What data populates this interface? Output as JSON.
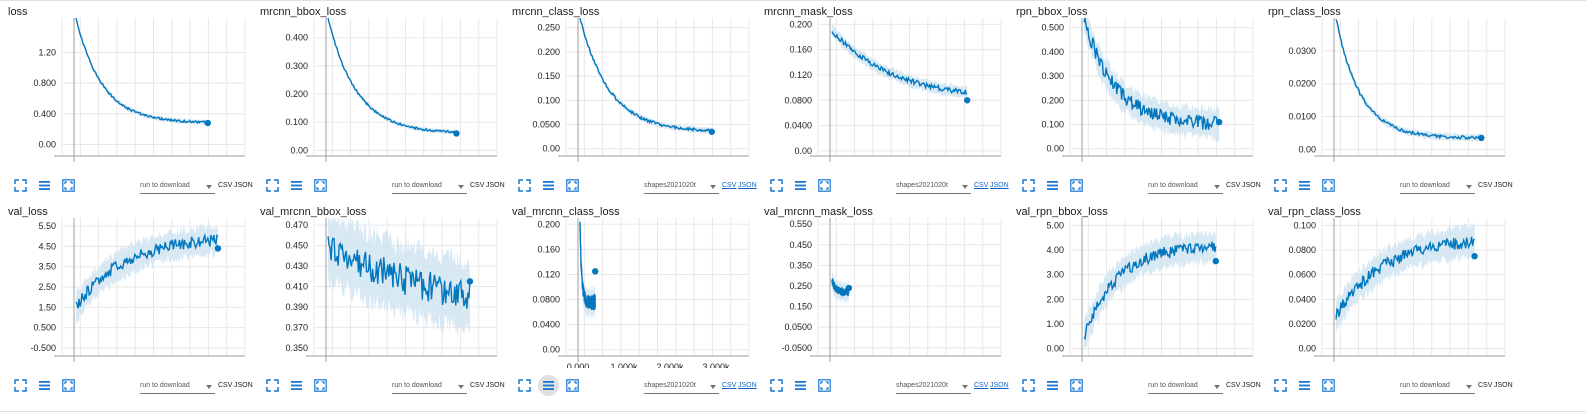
{
  "colors": {
    "line": "#0277bd",
    "band": "#cfe3f1",
    "grid": "#e8e8e8",
    "axis": "#9e9e9e"
  },
  "icons": {
    "expand": "expand-icon",
    "data": "data-list-icon",
    "fit": "fit-domain-icon"
  },
  "run_placeholder": "run to download",
  "csv": "CSV",
  "json": "JSON",
  "cards": [
    {
      "title": "loss",
      "run": "run to download",
      "link": false,
      "ytick_labels": [
        "1.20",
        "0.800",
        "0.400",
        "0.00"
      ],
      "y_domain": [
        -0.15,
        1.65
      ],
      "ticks": [
        1.2,
        0.8,
        0.4,
        0.0
      ],
      "start": 1.65,
      "end": 0.28,
      "decay": 5,
      "noise": 0.015,
      "band": 0.02,
      "xlen": 0.78,
      "last": 0.28,
      "xaxis": []
    },
    {
      "title": "mrcnn_bbox_loss",
      "run": "run to download",
      "link": false,
      "ytick_labels": [
        "0.400",
        "0.300",
        "0.200",
        "0.100",
        "0.00"
      ],
      "y_domain": [
        -0.02,
        0.47
      ],
      "ticks": [
        0.4,
        0.3,
        0.2,
        0.1,
        0.0
      ],
      "start": 0.47,
      "end": 0.06,
      "decay": 4.5,
      "noise": 0.004,
      "band": 0.005,
      "xlen": 0.76,
      "last": 0.06,
      "xaxis": []
    },
    {
      "title": "mrcnn_class_loss",
      "run": "shapes2021020t",
      "link": true,
      "ytick_labels": [
        "0.250",
        "0.200",
        "0.150",
        "0.100",
        "0.0500",
        "0.00"
      ],
      "y_domain": [
        -0.015,
        0.27
      ],
      "ticks": [
        0.25,
        0.2,
        0.15,
        0.1,
        0.05,
        0.0
      ],
      "start": 0.27,
      "end": 0.035,
      "decay": 4.5,
      "noise": 0.003,
      "band": 0.004,
      "xlen": 0.78,
      "last": 0.035,
      "xaxis": []
    },
    {
      "title": "mrcnn_mask_loss",
      "run": "shapes2021020t",
      "link": true,
      "ytick_labels": [
        "0.200",
        "0.160",
        "0.120",
        "0.0800",
        "0.0400",
        "0.00"
      ],
      "y_domain": [
        -0.008,
        0.21
      ],
      "ticks": [
        0.2,
        0.16,
        0.12,
        0.08,
        0.04,
        0.0
      ],
      "start": 0.19,
      "end": 0.08,
      "decay": 2.2,
      "noise": 0.004,
      "band": 0.006,
      "xlen": 0.8,
      "last": 0.08,
      "xaxis": []
    },
    {
      "title": "rpn_bbox_loss",
      "run": "run to download",
      "link": false,
      "ytick_labels": [
        "0.500",
        "0.400",
        "0.300",
        "0.200",
        "0.100",
        "0.00"
      ],
      "y_domain": [
        -0.03,
        0.54
      ],
      "ticks": [
        0.5,
        0.4,
        0.3,
        0.2,
        0.1,
        0.0
      ],
      "start": 0.54,
      "end": 0.1,
      "decay": 4.5,
      "noise": 0.03,
      "band": 0.04,
      "xlen": 0.8,
      "last": 0.11,
      "xaxis": []
    },
    {
      "title": "rpn_class_loss",
      "run": "run to download",
      "link": false,
      "ytick_labels": [
        "0.0300",
        "0.0200",
        "0.0100",
        "0.00"
      ],
      "y_domain": [
        -0.002,
        0.04
      ],
      "ticks": [
        0.03,
        0.02,
        0.01,
        0.0
      ],
      "start": 0.04,
      "end": 0.0035,
      "decay": 6,
      "noise": 0.0005,
      "band": 0.0007,
      "xlen": 0.86,
      "last": 0.0035,
      "xaxis": []
    },
    {
      "title": "val_loss",
      "run": "run to download",
      "link": false,
      "ytick_labels": [
        "5.50",
        "4.50",
        "3.50",
        "2.50",
        "1.50",
        "0.500",
        "-0.500"
      ],
      "y_domain": [
        -0.9,
        5.9
      ],
      "ticks": [
        5.5,
        4.5,
        3.5,
        2.5,
        1.5,
        0.5,
        -0.5
      ],
      "start": 1.5,
      "end": 5.0,
      "decay": 3,
      "noise": 0.3,
      "band": 0.45,
      "xlen": 0.84,
      "last": 4.4,
      "xaxis": []
    },
    {
      "title": "val_mrcnn_bbox_loss",
      "run": "run to download",
      "link": false,
      "ytick_labels": [
        "0.470",
        "0.450",
        "0.430",
        "0.410",
        "0.390",
        "0.370",
        "0.350"
      ],
      "y_domain": [
        0.342,
        0.477
      ],
      "ticks": [
        0.47,
        0.45,
        0.43,
        0.41,
        0.39,
        0.37,
        0.35
      ],
      "start": 0.45,
      "end": 0.38,
      "decay": 1.2,
      "noise": 0.015,
      "band": 0.022,
      "xlen": 0.84,
      "last": 0.415,
      "xaxis": []
    },
    {
      "title": "val_mrcnn_class_loss",
      "run": "shapes2021020t",
      "link": true,
      "ytick_labels": [
        "0.200",
        "0.160",
        "0.120",
        "0.0800",
        "0.0400",
        "0.00"
      ],
      "y_domain": [
        -0.01,
        0.21
      ],
      "ticks": [
        0.2,
        0.16,
        0.12,
        0.08,
        0.04,
        0.0
      ],
      "start": 0.2,
      "end": 0.075,
      "decay": 9,
      "noise": 0.012,
      "band": 0.015,
      "xlen": 0.09,
      "last": 0.125,
      "xaxis": [
        "0.000",
        "1.000k",
        "2.000k",
        "3.000k"
      ]
    },
    {
      "title": "val_mrcnn_mask_loss",
      "run": "shapes2021020t",
      "link": true,
      "ytick_labels": [
        "0.550",
        "0.450",
        "0.350",
        "0.250",
        "0.150",
        "0.0500",
        "-0.0500"
      ],
      "y_domain": [
        -0.09,
        0.58
      ],
      "ticks": [
        0.55,
        0.45,
        0.35,
        0.25,
        0.15,
        0.05,
        -0.05
      ],
      "start": 0.28,
      "end": 0.22,
      "decay": 5,
      "noise": 0.02,
      "band": 0.03,
      "xlen": 0.1,
      "last": 0.24,
      "xaxis": []
    },
    {
      "title": "val_rpn_bbox_loss",
      "run": "run to download",
      "link": false,
      "ytick_labels": [
        "5.00",
        "4.00",
        "3.00",
        "2.00",
        "1.00",
        "0.00"
      ],
      "y_domain": [
        -0.3,
        5.3
      ],
      "ticks": [
        5.0,
        4.0,
        3.0,
        2.0,
        1.0,
        0.0
      ],
      "start": 0.5,
      "end": 4.2,
      "decay": 4,
      "noise": 0.25,
      "band": 0.4,
      "xlen": 0.78,
      "last": 3.55,
      "xaxis": []
    },
    {
      "title": "val_rpn_class_loss",
      "run": "run to download",
      "link": false,
      "ytick_labels": [
        "0.100",
        "0.0800",
        "0.0600",
        "0.0400",
        "0.0200",
        "0.00"
      ],
      "y_domain": [
        -0.006,
        0.106
      ],
      "ticks": [
        0.1,
        0.08,
        0.06,
        0.04,
        0.02,
        0.0
      ],
      "start": 0.026,
      "end": 0.09,
      "decay": 3,
      "noise": 0.005,
      "band": 0.008,
      "xlen": 0.82,
      "last": 0.075,
      "xaxis": []
    }
  ]
}
